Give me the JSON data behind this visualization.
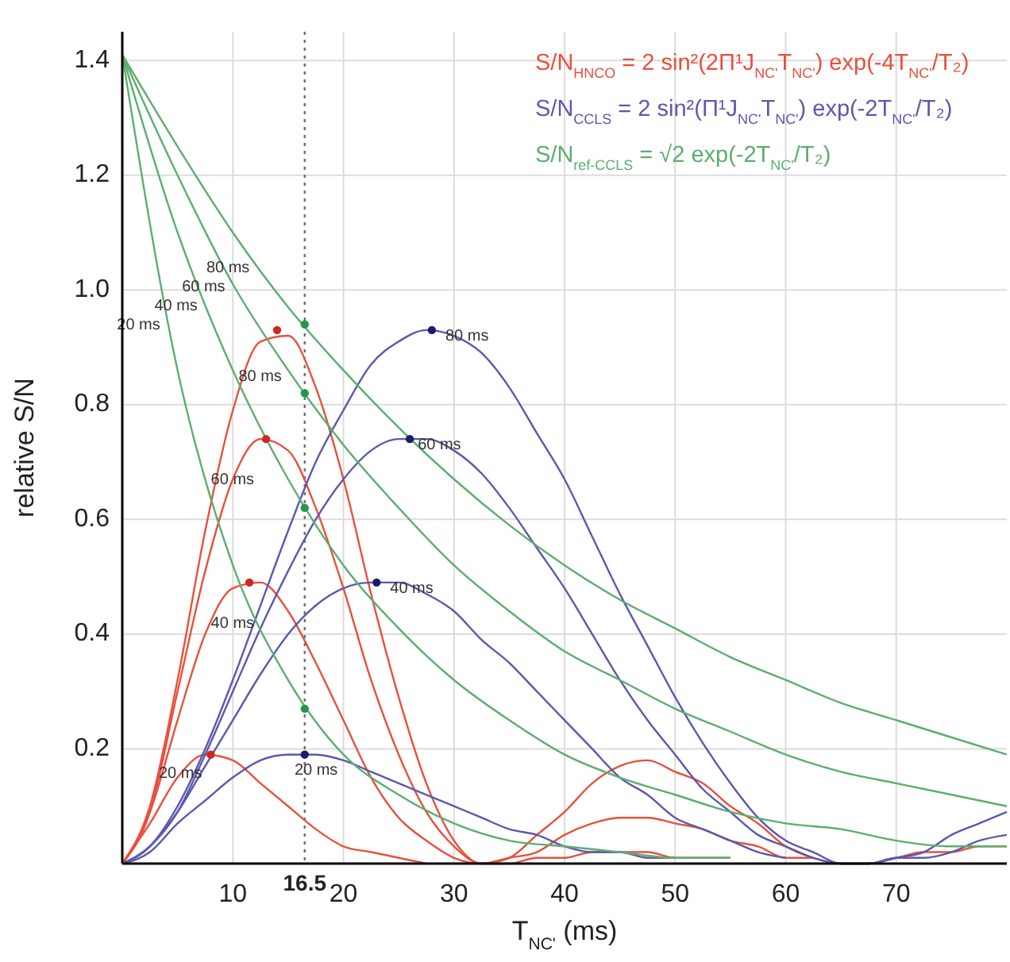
{
  "chart_data": {
    "type": "line",
    "xlabel": "T$_{NC'}$ (ms)",
    "ylabel": "relative S/N",
    "annotations": [
      "S/N$_{HNCO}$ = 2 sin²(2Π¹J$_{NC'}$T$_{NC'}$) exp(-4T$_{NC'}$/T₂)",
      "S/N$_{CCLS}$ = 2 sin²(Π¹J$_{NC'}$T$_{NC'}$) exp(-2T$_{NC'}$/T₂)",
      "S/N$_{ref-CCLS}$ = √2 exp(-2T$_{NC'}$/T₂)"
    ],
    "x": [
      0,
      2.5,
      5,
      7.5,
      10,
      12.5,
      15,
      17.5,
      20,
      22.5,
      25,
      27.5,
      30,
      32.5,
      35,
      37.5,
      40,
      42.5,
      45,
      47.5,
      50,
      52.5,
      55,
      57.5,
      60,
      62.5,
      65,
      67.5,
      70,
      72.5,
      75,
      77.5,
      80
    ],
    "xlim": [
      0,
      80
    ],
    "xticks": [
      10,
      20,
      30,
      40,
      50,
      60,
      70
    ],
    "ylim": [
      0,
      1.45
    ],
    "yticks": [
      0.2,
      0.4,
      0.6,
      0.8,
      {
        "value": 1,
        "label": "1.0"
      },
      1.2,
      1.4
    ],
    "grid": true,
    "legend": false,
    "line_style": "solid",
    "ref_lines": [
      {
        "axis": "x",
        "value": 16.5,
        "label": "16.5",
        "color": "#707070",
        "line_style": "dotted"
      }
    ],
    "series": [
      {
        "name": "20 ms",
        "color": "#e8503c",
        "values": [
          0,
          0.07,
          0.15,
          0.19,
          0.18,
          0.14,
          0.1,
          0.06,
          0.03,
          0.02,
          0.01,
          0,
          null,
          null,
          null,
          null,
          null,
          null,
          null,
          null,
          null,
          null,
          null,
          null,
          null,
          null,
          null,
          null,
          null,
          null,
          null,
          null,
          null
        ]
      },
      {
        "name": "40 ms",
        "color": "#e8503c",
        "values": [
          0,
          0.09,
          0.25,
          0.4,
          0.48,
          0.49,
          0.44,
          0.35,
          0.25,
          0.15,
          0.08,
          0.04,
          0.01,
          0,
          0,
          0.01,
          0.01,
          0.02,
          0.02,
          0.02,
          0.01,
          0.01,
          0.01,
          null,
          null,
          null,
          null,
          null,
          null,
          null,
          null,
          null,
          null
        ]
      },
      {
        "name": "60 ms",
        "color": "#e8503c",
        "values": [
          0,
          0.09,
          0.3,
          0.51,
          0.67,
          0.74,
          0.72,
          0.62,
          0.48,
          0.32,
          0.19,
          0.09,
          0.03,
          0,
          0.01,
          0.02,
          0.05,
          0.07,
          0.08,
          0.08,
          0.07,
          0.06,
          0.04,
          0.03,
          0.01,
          0.01,
          null,
          null,
          null,
          null,
          null,
          null,
          null
        ]
      },
      {
        "name": "80 ms",
        "color": "#e8503c",
        "values": [
          0,
          0.1,
          0.32,
          0.58,
          0.79,
          0.91,
          0.92,
          0.83,
          0.67,
          0.47,
          0.29,
          0.14,
          0.04,
          0,
          0.01,
          0.05,
          0.09,
          0.14,
          0.17,
          0.18,
          0.16,
          0.14,
          0.1,
          0.07,
          0.03,
          0.01,
          0,
          0,
          0.01,
          0.02,
          0.02,
          0.03,
          0.03
        ]
      },
      {
        "name": "20 ms",
        "color": "#5b58ad",
        "values": [
          0,
          0.02,
          0.07,
          0.11,
          0.15,
          0.18,
          0.19,
          0.19,
          0.18,
          0.16,
          0.14,
          0.12,
          0.1,
          0.08,
          0.06,
          0.05,
          0.03,
          0.02,
          0.02,
          0.01,
          0.01,
          null,
          null,
          null,
          null,
          null,
          null,
          null,
          null,
          null,
          null,
          null,
          null
        ]
      },
      {
        "name": "40 ms",
        "color": "#5b58ad",
        "values": [
          0,
          0.03,
          0.09,
          0.17,
          0.25,
          0.33,
          0.4,
          0.45,
          0.48,
          0.49,
          0.49,
          0.47,
          0.44,
          0.39,
          0.35,
          0.3,
          0.25,
          0.2,
          0.15,
          0.12,
          0.08,
          0.06,
          0.04,
          0.02,
          0.01,
          null,
          null,
          null,
          null,
          null,
          null,
          null,
          null
        ]
      },
      {
        "name": "60 ms",
        "color": "#5b58ad",
        "values": [
          0,
          0.03,
          0.09,
          0.19,
          0.3,
          0.41,
          0.51,
          0.6,
          0.67,
          0.72,
          0.74,
          0.74,
          0.72,
          0.68,
          0.62,
          0.55,
          0.48,
          0.4,
          0.32,
          0.25,
          0.19,
          0.13,
          0.09,
          0.05,
          0.03,
          0.01,
          0,
          0,
          0.01,
          0.01,
          0.02,
          0.04,
          0.05
        ]
      },
      {
        "name": "80 ms",
        "color": "#5b58ad",
        "values": [
          0,
          0.03,
          0.1,
          0.2,
          0.32,
          0.45,
          0.58,
          0.7,
          0.79,
          0.87,
          0.91,
          0.93,
          0.92,
          0.89,
          0.83,
          0.75,
          0.67,
          0.57,
          0.47,
          0.38,
          0.29,
          0.21,
          0.14,
          0.08,
          0.04,
          0.02,
          0,
          0,
          0.01,
          0.02,
          0.05,
          0.07,
          0.09
        ]
      },
      {
        "name": "20 ms",
        "color": "#5cae6e",
        "x": [
          0,
          5,
          10,
          15,
          20,
          25,
          30,
          35,
          40,
          45,
          50,
          55
        ],
        "values": [
          1.41,
          0.86,
          0.52,
          0.32,
          0.19,
          0.12,
          0.07,
          0.04,
          0.03,
          0.02,
          0.01,
          0.01
        ]
      },
      {
        "name": "40 ms",
        "color": "#5cae6e",
        "x": [
          0,
          5,
          10,
          15,
          20,
          25,
          30,
          35,
          40,
          45,
          50,
          55,
          60,
          65,
          70,
          75,
          80
        ],
        "values": [
          1.41,
          1.1,
          0.86,
          0.67,
          0.52,
          0.41,
          0.32,
          0.25,
          0.19,
          0.15,
          0.12,
          0.09,
          0.07,
          0.06,
          0.04,
          0.03,
          0.03
        ]
      },
      {
        "name": "60 ms",
        "color": "#5cae6e",
        "x": [
          0,
          5,
          10,
          15,
          20,
          25,
          30,
          35,
          40,
          45,
          50,
          55,
          60,
          65,
          70,
          75,
          80
        ],
        "values": [
          1.41,
          1.2,
          1.01,
          0.86,
          0.73,
          0.62,
          0.52,
          0.44,
          0.37,
          0.32,
          0.27,
          0.23,
          0.19,
          0.16,
          0.14,
          0.12,
          0.1
        ]
      },
      {
        "name": "80 ms",
        "color": "#5cae6e",
        "x": [
          0,
          5,
          10,
          15,
          20,
          25,
          30,
          35,
          40,
          45,
          50,
          55,
          60,
          65,
          70,
          75,
          80
        ],
        "values": [
          1.41,
          1.25,
          1.1,
          0.97,
          0.86,
          0.76,
          0.67,
          0.59,
          0.52,
          0.46,
          0.41,
          0.36,
          0.32,
          0.28,
          0.25,
          0.22,
          0.19
        ]
      },
      {
        "type": "scatter",
        "marker": "circle",
        "color": "#cc2a1c",
        "x": [
          8,
          11.5,
          13,
          14
        ],
        "values": [
          0.19,
          0.49,
          0.74,
          0.93
        ]
      },
      {
        "type": "scatter",
        "marker": "circle",
        "color": "#1c1c6a",
        "x": [
          16.5,
          23,
          26,
          28
        ],
        "values": [
          0.19,
          0.49,
          0.74,
          0.93
        ]
      },
      {
        "type": "scatter",
        "marker": "circle",
        "color": "#23984a",
        "x": [
          16.5,
          16.5,
          16.5,
          16.5
        ],
        "values": [
          0.27,
          0.62,
          0.82,
          0.94
        ]
      }
    ]
  }
}
